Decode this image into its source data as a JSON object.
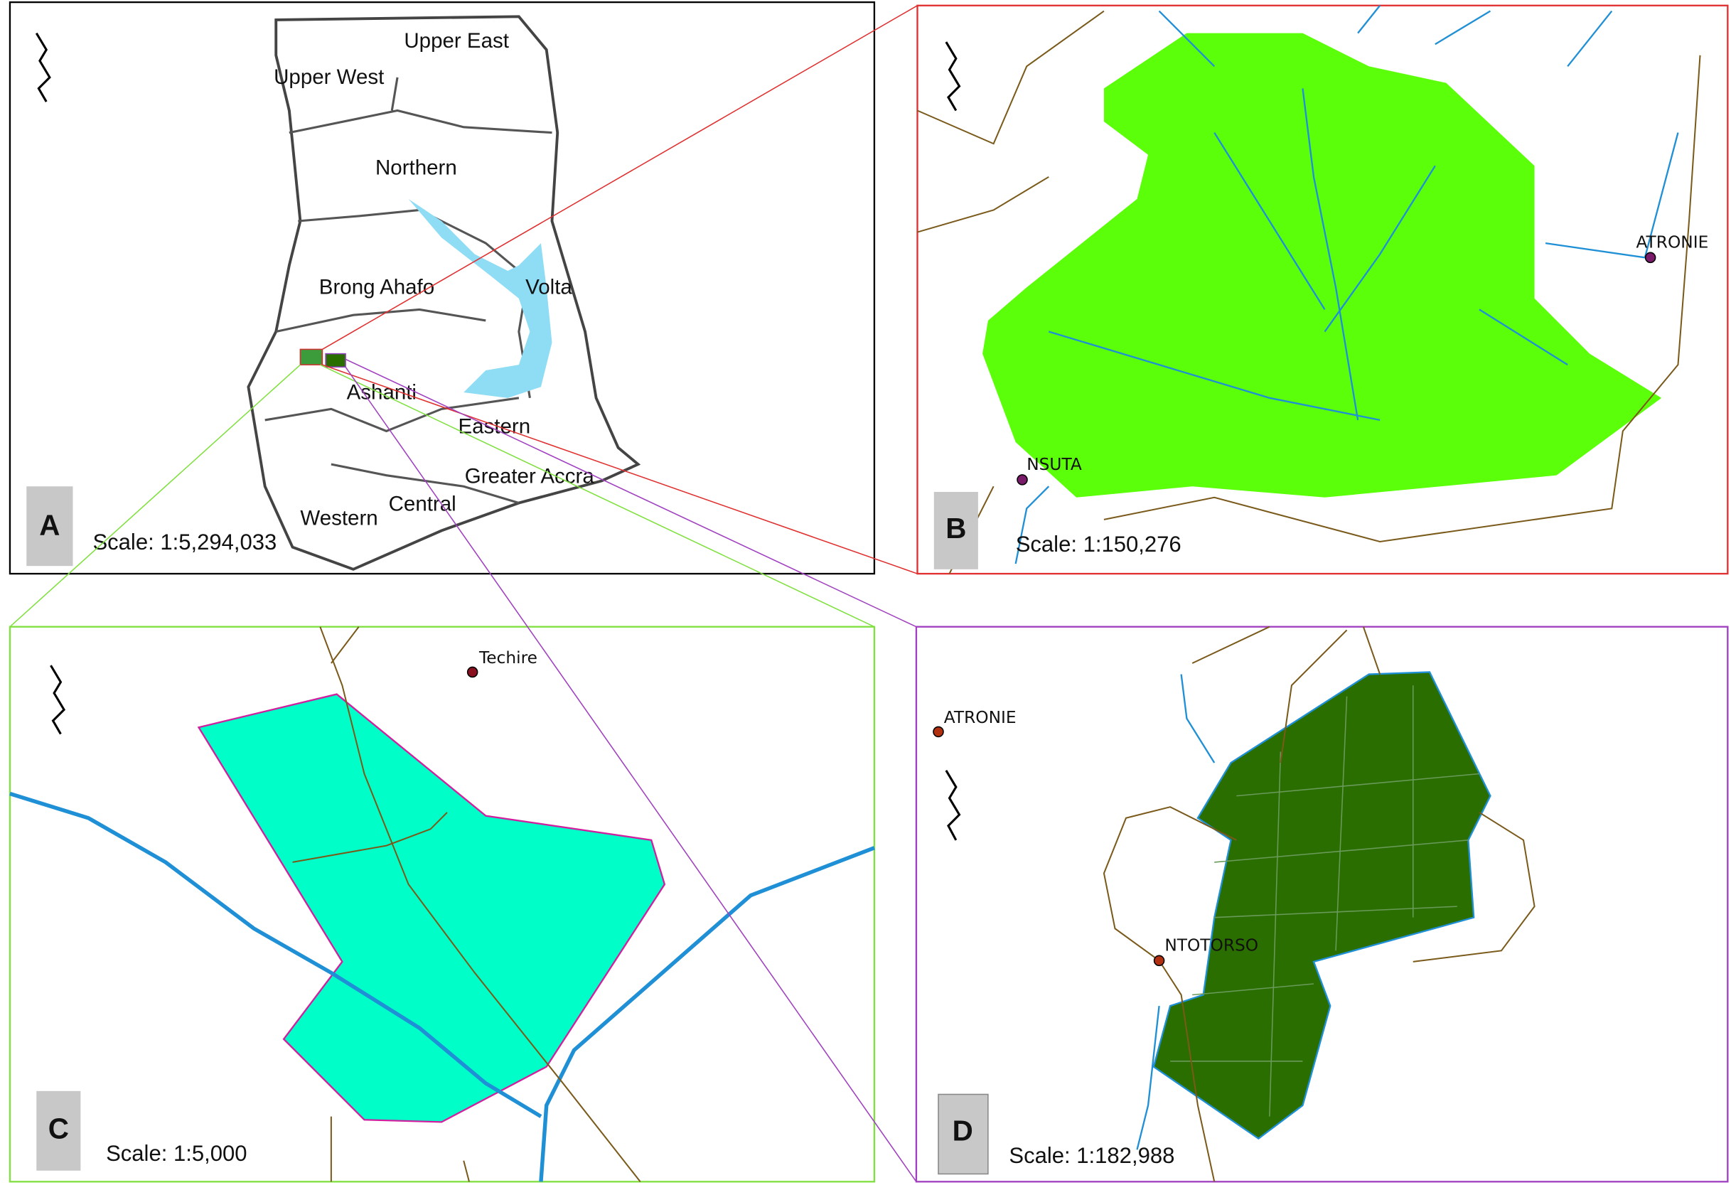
{
  "panels": [
    {
      "letter": "A",
      "scale": "Scale: 1:5,294,033",
      "regions": [
        "Upper East",
        "Upper West",
        "Northern",
        "Brong Ahafo",
        "Volta",
        "Ashanti",
        "Eastern",
        "Greater Accra",
        "Western",
        "Central"
      ]
    },
    {
      "letter": "B",
      "scale": "Scale: 1:150,276",
      "places": [
        "ATRONIE",
        "NSUTA"
      ]
    },
    {
      "letter": "C",
      "scale": "Scale: 1:5,000",
      "places": [
        "Techire"
      ]
    },
    {
      "letter": "D",
      "scale": "Scale: 1:182,988",
      "places": [
        "ATRONIE",
        "NTOTORSO"
      ]
    }
  ]
}
